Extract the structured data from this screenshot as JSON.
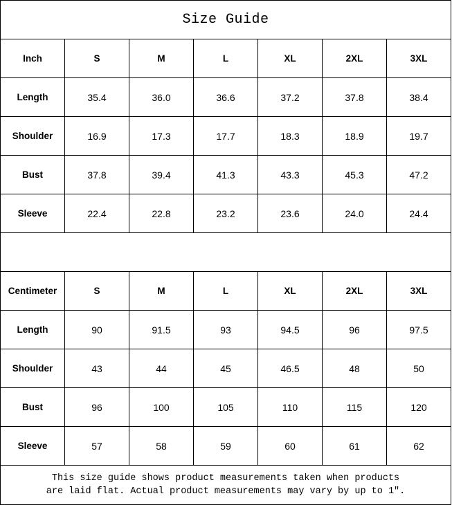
{
  "title": "Size Guide",
  "sizes": [
    "S",
    "M",
    "L",
    "XL",
    "2XL",
    "3XL"
  ],
  "inch": {
    "unit_label": "Inch",
    "rows": [
      {
        "label": "Length",
        "values": [
          "35.4",
          "36.0",
          "36.6",
          "37.2",
          "37.8",
          "38.4"
        ]
      },
      {
        "label": "Shoulder",
        "values": [
          "16.9",
          "17.3",
          "17.7",
          "18.3",
          "18.9",
          "19.7"
        ]
      },
      {
        "label": "Bust",
        "values": [
          "37.8",
          "39.4",
          "41.3",
          "43.3",
          "45.3",
          "47.2"
        ]
      },
      {
        "label": "Sleeve",
        "values": [
          "22.4",
          "22.8",
          "23.2",
          "23.6",
          "24.0",
          "24.4"
        ]
      }
    ]
  },
  "centimeter": {
    "unit_label": "Centimeter",
    "rows": [
      {
        "label": "Length",
        "values": [
          "90",
          "91.5",
          "93",
          "94.5",
          "96",
          "97.5"
        ]
      },
      {
        "label": "Shoulder",
        "values": [
          "43",
          "44",
          "45",
          "46.5",
          "48",
          "50"
        ]
      },
      {
        "label": "Bust",
        "values": [
          "96",
          "100",
          "105",
          "110",
          "115",
          "120"
        ]
      },
      {
        "label": "Sleeve",
        "values": [
          "57",
          "58",
          "59",
          "60",
          "61",
          "62"
        ]
      }
    ]
  },
  "footer": {
    "line1": "This size guide shows product measurements taken when products",
    "line2": "are laid flat. Actual product measurements may vary by up to 1″."
  }
}
